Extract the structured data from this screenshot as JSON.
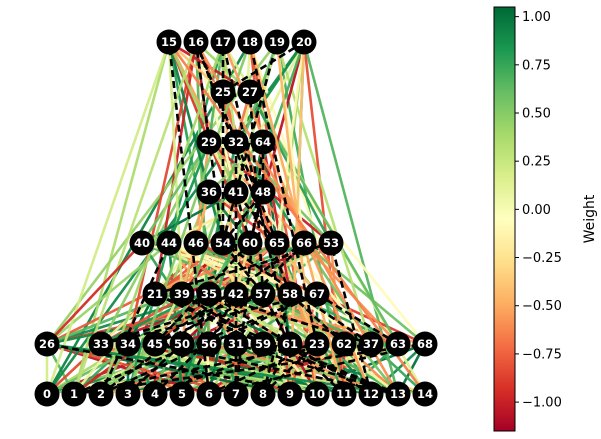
{
  "layers": [
    [
      "0",
      "1",
      "2",
      "3",
      "4",
      "5",
      "6",
      "7",
      "8",
      "9",
      "10",
      "11",
      "12",
      "13",
      "14"
    ],
    [
      "26",
      "33",
      "34",
      "45",
      "50",
      "56",
      "31",
      "59",
      "61",
      "23",
      "62",
      "37",
      "63",
      "68"
    ],
    [
      "21",
      "39",
      "35",
      "42",
      "57",
      "58",
      "67"
    ],
    [
      "40",
      "44",
      "46",
      "54",
      "60",
      "65",
      "66",
      "53"
    ],
    [
      "36",
      "41",
      "48"
    ],
    [
      "29",
      "32",
      "64"
    ],
    [
      "25",
      "27"
    ],
    [
      "15",
      "16",
      "17",
      "18",
      "19",
      "20"
    ]
  ],
  "colorbar": {
    "label": "Weight",
    "min": -1.15,
    "max": 1.05,
    "ticks": [
      "1.00",
      "0.75",
      "0.50",
      "0.25",
      "0.00",
      "−0.25",
      "−0.50",
      "−0.75",
      "−1.00"
    ],
    "tick_values": [
      1.0,
      0.75,
      0.5,
      0.25,
      0.0,
      -0.25,
      -0.5,
      -0.75,
      -1.0
    ],
    "colormap": "RdYlGn",
    "colors": [
      "#a50026",
      "#d73027",
      "#f46d43",
      "#fdae61",
      "#fee08b",
      "#ffffbf",
      "#d9ef8b",
      "#a6d96a",
      "#66bd63",
      "#1a9850",
      "#006837"
    ]
  },
  "edge_style": {
    "disabled": "black dashed",
    "enabled": "colored by weight"
  },
  "node_color": "#000000"
}
